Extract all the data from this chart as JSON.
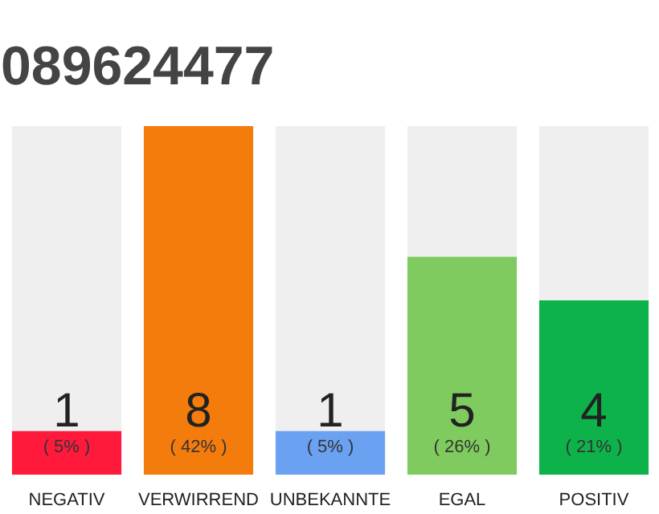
{
  "chart_data": {
    "type": "bar",
    "title": "089624477",
    "ylim": [
      0,
      8
    ],
    "data_labels": true,
    "categories": [
      "NEGATIV",
      "VERWIRREND",
      "UNBEKANNTE",
      "EGAL",
      "POSITIV"
    ],
    "values": [
      1,
      8,
      1,
      5,
      4
    ],
    "colors": [
      "#ff1a3c",
      "#f47c0c",
      "#6aa1f0",
      "#7fcb5f",
      "#0db34a"
    ],
    "annotations": [
      {
        "text": "( 5% )",
        "x": "NEGATIV",
        "y": 0
      },
      {
        "text": "( 42% )",
        "x": "VERWIRREND",
        "y": 0
      },
      {
        "text": "( 5% )",
        "x": "UNBEKANNTE",
        "y": 0
      },
      {
        "text": "( 26% )",
        "x": "EGAL",
        "y": 0
      },
      {
        "text": "( 21% )",
        "x": "POSITIV",
        "y": 0
      }
    ],
    "grid": false,
    "tick_labels": "x"
  }
}
